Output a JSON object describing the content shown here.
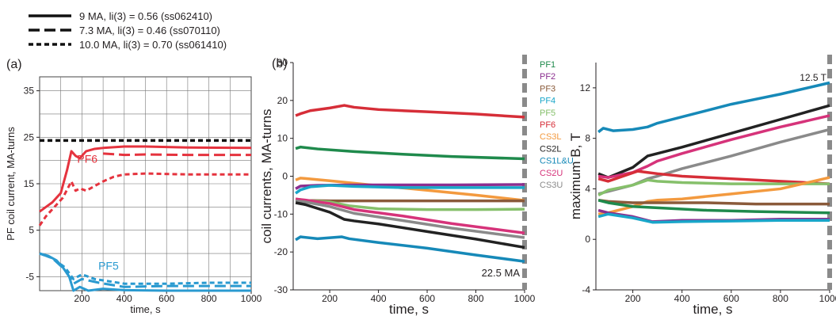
{
  "legend": [
    {
      "label": "9 MA, li(3) = 0.56 (ss062410)",
      "style": "solid"
    },
    {
      "label": "7.3 MA, li(3) = 0.46 (ss070110)",
      "style": "long-dash"
    },
    {
      "label": "10.0 MA, li(3) = 0.70 (ss061410)",
      "style": "short-dash"
    }
  ],
  "colors": {
    "PF1": "#1f8a4c",
    "PF2": "#8b2e8f",
    "PF3": "#8a5a3a",
    "PF4": "#19a6c9",
    "PF5": "#86c06b",
    "PF6": "#d62e38",
    "CS3L": "#f39a3f",
    "CS2L": "#222222",
    "CS1L&U": "#1689b8",
    "CS2U": "#d6337a",
    "CS3U": "#8a8a8a",
    "panel_a_red": "#e5333e",
    "panel_a_blue": "#2a9ad0",
    "limit": "#8a8a8a"
  },
  "chart_data": [
    {
      "type": "line",
      "panel_label": "(a)",
      "xlabel": "time, s",
      "ylabel": "PF coil current, MA-turns",
      "xlim": [
        0,
        1000
      ],
      "ylim": [
        -8,
        38
      ],
      "xticks": [
        200,
        400,
        600,
        800,
        1000
      ],
      "yticks": [
        -5,
        5,
        15,
        25,
        35
      ],
      "grid": true,
      "reference_line": {
        "y": 24.3,
        "style": "short-dash",
        "color": "black"
      },
      "annotations": [
        {
          "text": "PF6",
          "x": 200,
          "y": 19.5
        },
        {
          "text": "PF5",
          "x": 300,
          "y": -3.5
        }
      ],
      "series": [
        {
          "coil": "PF6",
          "style": "solid",
          "x": [
            0,
            30,
            60,
            100,
            130,
            150,
            170,
            190,
            220,
            260,
            300,
            400,
            500,
            700,
            1000
          ],
          "y": [
            9,
            10,
            11,
            13,
            18,
            22,
            21,
            20.5,
            22,
            22.5,
            22.7,
            23,
            23,
            22.8,
            22.7
          ]
        },
        {
          "coil": "PF6",
          "style": "long-dash",
          "x": [
            300,
            400,
            500,
            700,
            1000
          ],
          "y": [
            21.5,
            21.2,
            21.3,
            21.2,
            21.2
          ]
        },
        {
          "coil": "PF6",
          "style": "short-dash",
          "x": [
            0,
            30,
            70,
            110,
            150,
            170,
            190,
            220,
            260,
            300,
            350,
            400,
            500,
            700,
            1000
          ],
          "y": [
            6,
            8,
            10,
            12,
            15.5,
            13.5,
            14,
            13.5,
            14.5,
            15.5,
            16.5,
            17,
            17.2,
            17,
            17
          ]
        },
        {
          "coil": "PF5",
          "style": "solid",
          "x": [
            0,
            40,
            80,
            110,
            140,
            160,
            190,
            230,
            300,
            400,
            600,
            800,
            1000
          ],
          "y": [
            0,
            -0.5,
            -1.5,
            -3,
            -5,
            -8,
            -7.2,
            -8,
            -7.6,
            -7.9,
            -8,
            -8,
            -8
          ]
        },
        {
          "coil": "PF5",
          "style": "long-dash",
          "x": [
            0,
            60,
            120,
            160,
            200,
            280,
            400,
            600,
            800,
            1000
          ],
          "y": [
            0,
            -1,
            -3.5,
            -6.5,
            -5.5,
            -6.3,
            -7.2,
            -7,
            -7,
            -7
          ]
        },
        {
          "coil": "PF5",
          "style": "short-dash",
          "x": [
            0,
            60,
            120,
            160,
            200,
            260,
            400,
            600,
            800,
            1000
          ],
          "y": [
            0,
            -1,
            -3,
            -5.5,
            -4.5,
            -5.5,
            -6.5,
            -6.5,
            -6.3,
            -6.3
          ]
        }
      ]
    },
    {
      "type": "line",
      "panel_label": "(b)",
      "xlabel": "time, s",
      "ylabel": "coil currents, MA-turns",
      "xlim": [
        50,
        1000
      ],
      "ylim": [
        -30,
        30
      ],
      "xticks": [
        200,
        400,
        600,
        800,
        1000
      ],
      "yticks": [
        -30,
        -20,
        -10,
        0,
        10,
        20,
        30
      ],
      "grid": false,
      "vertical_marker": {
        "x": 1000,
        "label": "22.5 MA"
      },
      "legend": [
        "PF1",
        "PF2",
        "PF3",
        "PF4",
        "PF5",
        "PF6",
        "CS3L",
        "CS2L",
        "CS1L&U",
        "CS2U",
        "CS3U"
      ],
      "series": [
        {
          "name": "PF6",
          "x": [
            60,
            80,
            120,
            200,
            260,
            300,
            400,
            600,
            800,
            1000
          ],
          "y": [
            16,
            16.5,
            17.3,
            18,
            18.7,
            18.2,
            17.6,
            17,
            16.4,
            15.6
          ]
        },
        {
          "name": "PF1",
          "x": [
            60,
            80,
            150,
            300,
            500,
            700,
            1000
          ],
          "y": [
            7.3,
            7.7,
            7.2,
            6.5,
            5.8,
            5.2,
            4.6
          ]
        },
        {
          "name": "CS3L",
          "x": [
            60,
            80,
            100,
            200,
            400,
            600,
            800,
            1000
          ],
          "y": [
            -1,
            -0.5,
            -0.6,
            -1.2,
            -2.5,
            -3.7,
            -5,
            -6.4
          ]
        },
        {
          "name": "PF2",
          "x": [
            60,
            80,
            150,
            300,
            500,
            700,
            1000
          ],
          "y": [
            -3.3,
            -2.6,
            -2.4,
            -2.3,
            -2.3,
            -2.3,
            -2.2
          ]
        },
        {
          "name": "PF4",
          "x": [
            60,
            80,
            120,
            200,
            300,
            500,
            700,
            1000
          ],
          "y": [
            -4.5,
            -3.6,
            -2.8,
            -2.4,
            -2.7,
            -3,
            -3,
            -3
          ]
        },
        {
          "name": "PF3",
          "x": [
            60,
            100,
            200,
            300,
            500,
            700,
            1000
          ],
          "y": [
            -6.3,
            -6.4,
            -6.5,
            -6.5,
            -6.5,
            -6.5,
            -6.5
          ]
        },
        {
          "name": "PF5",
          "x": [
            60,
            100,
            200,
            280,
            400,
            600,
            800,
            1000
          ],
          "y": [
            -6,
            -6.4,
            -6.8,
            -7.8,
            -8.6,
            -8.8,
            -8.8,
            -8.7
          ]
        },
        {
          "name": "CS2U",
          "x": [
            60,
            100,
            200,
            300,
            500,
            700,
            1000
          ],
          "y": [
            -6,
            -6.3,
            -7.2,
            -8.8,
            -10.5,
            -12.5,
            -15
          ]
        },
        {
          "name": "CS3U",
          "x": [
            60,
            100,
            200,
            300,
            500,
            700,
            1000
          ],
          "y": [
            -6.5,
            -6.8,
            -8,
            -9.8,
            -11.7,
            -13.7,
            -16.2
          ]
        },
        {
          "name": "CS2L",
          "x": [
            60,
            100,
            200,
            260,
            300,
            400,
            600,
            800,
            1000
          ],
          "y": [
            -7,
            -7.5,
            -9.5,
            -11.4,
            -11.8,
            -12.6,
            -14.6,
            -16.6,
            -18.8
          ]
        },
        {
          "name": "CS1L&U",
          "x": [
            60,
            80,
            150,
            250,
            280,
            400,
            600,
            800,
            1000
          ],
          "y": [
            -16.8,
            -16,
            -16.5,
            -16,
            -16.5,
            -17.5,
            -19,
            -20.8,
            -22.5
          ]
        }
      ]
    },
    {
      "type": "line",
      "panel_label": "",
      "xlabel": "time, s",
      "ylabel": "maximum B, T",
      "xlim": [
        50,
        1000
      ],
      "ylim": [
        -4,
        14
      ],
      "xticks": [
        200,
        400,
        600,
        800,
        1000
      ],
      "yticks": [
        -4,
        0,
        4,
        8,
        12
      ],
      "grid": false,
      "vertical_marker": {
        "x": 1000,
        "label": "12.5 T"
      },
      "series": [
        {
          "name": "CS1L&U",
          "x": [
            60,
            80,
            120,
            200,
            260,
            300,
            400,
            600,
            800,
            1000
          ],
          "y": [
            8.5,
            8.8,
            8.6,
            8.7,
            8.9,
            9.2,
            9.7,
            10.7,
            11.5,
            12.4
          ]
        },
        {
          "name": "CS2L",
          "x": [
            60,
            100,
            200,
            260,
            300,
            400,
            600,
            800,
            1000
          ],
          "y": [
            5.2,
            4.9,
            5.7,
            6.6,
            6.8,
            7.3,
            8.4,
            9.5,
            10.6
          ]
        },
        {
          "name": "CS2U",
          "x": [
            60,
            100,
            200,
            260,
            300,
            400,
            600,
            800,
            1000
          ],
          "y": [
            5,
            4.9,
            5.3,
            5.8,
            6.2,
            6.8,
            7.9,
            8.9,
            9.8
          ]
        },
        {
          "name": "CS3U",
          "x": [
            60,
            100,
            200,
            260,
            300,
            400,
            600,
            800,
            1000
          ],
          "y": [
            3.6,
            3.8,
            4.3,
            4.8,
            5,
            5.6,
            6.6,
            7.7,
            8.7
          ]
        },
        {
          "name": "PF6",
          "x": [
            60,
            100,
            160,
            220,
            260,
            300,
            400,
            600,
            800,
            1000
          ],
          "y": [
            4.8,
            4.6,
            5,
            5.4,
            5.3,
            5.2,
            5,
            4.8,
            4.6,
            4.4
          ]
        },
        {
          "name": "PF5",
          "x": [
            60,
            100,
            200,
            260,
            300,
            400,
            600,
            800,
            1000
          ],
          "y": [
            3.5,
            3.9,
            4.3,
            4.7,
            4.6,
            4.5,
            4.4,
            4.4,
            4.4
          ]
        },
        {
          "name": "CS3L",
          "x": [
            60,
            100,
            200,
            260,
            300,
            400,
            600,
            800,
            1000
          ],
          "y": [
            2,
            2.1,
            2.6,
            3,
            3.1,
            3.2,
            3.6,
            4,
            4.9
          ]
        },
        {
          "name": "PF3",
          "x": [
            60,
            100,
            200,
            300,
            500,
            700,
            1000
          ],
          "y": [
            3.1,
            3,
            2.9,
            2.9,
            2.9,
            2.8,
            2.8
          ]
        },
        {
          "name": "PF1",
          "x": [
            60,
            100,
            200,
            300,
            500,
            700,
            1000
          ],
          "y": [
            3.1,
            2.9,
            2.6,
            2.5,
            2.3,
            2.2,
            2.1
          ]
        },
        {
          "name": "PF2",
          "x": [
            60,
            100,
            200,
            280,
            400,
            600,
            800,
            1000
          ],
          "y": [
            2.3,
            2.1,
            1.8,
            1.4,
            1.5,
            1.5,
            1.6,
            1.6
          ]
        },
        {
          "name": "PF4",
          "x": [
            60,
            100,
            200,
            280,
            400,
            600,
            800,
            1000
          ],
          "y": [
            1.8,
            2,
            1.7,
            1.35,
            1.4,
            1.45,
            1.5,
            1.5
          ]
        }
      ]
    }
  ]
}
